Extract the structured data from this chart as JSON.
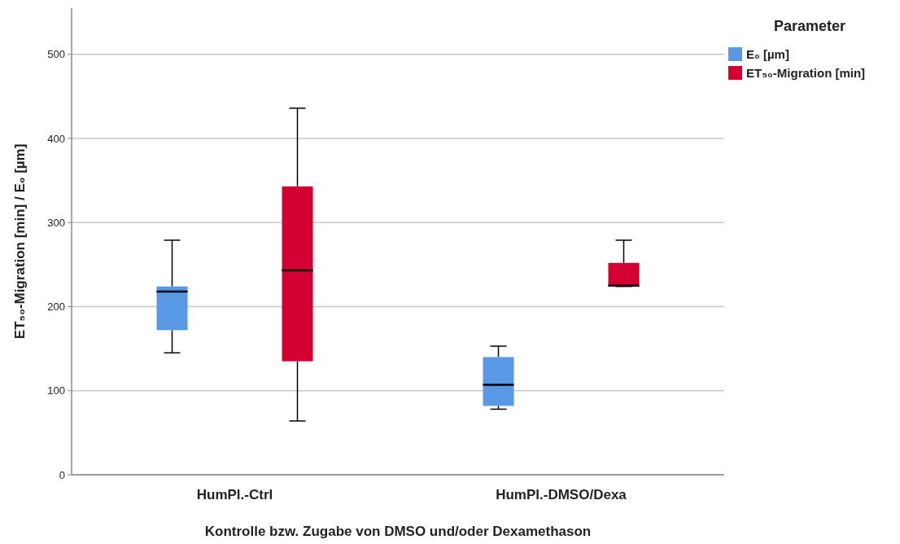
{
  "chart_data": {
    "type": "box",
    "xlabel": "Kontrolle bzw. Zugabe von DMSO und/oder Dexamethason",
    "ylabel": "ET₅₀-Migration [min] / E₀ [µm]",
    "legend_title": "Parameter",
    "legend": "top right",
    "grid": "y",
    "categories": [
      "HumPl.-Ctrl",
      "HumPl.-DMSO/Dexa"
    ],
    "ylim": [
      0,
      555
    ],
    "yticks": [
      0,
      100,
      200,
      300,
      400,
      500
    ],
    "series": [
      {
        "name": "E₀ [µm]",
        "color": "#5898e4",
        "boxes": [
          {
            "low": 145,
            "q1": 172,
            "median": 218,
            "q3": 224,
            "high": 279
          },
          {
            "low": 78,
            "q1": 82,
            "median": 107,
            "q3": 140,
            "high": 153
          }
        ]
      },
      {
        "name": "ET₅₀-Migration [min]",
        "color": "#d50032",
        "boxes": [
          {
            "low": 64,
            "q1": 135,
            "median": 243,
            "q3": 343,
            "high": 436
          },
          {
            "low": 224,
            "q1": 224,
            "median": 225,
            "q3": 252,
            "high": 279
          }
        ]
      }
    ]
  }
}
